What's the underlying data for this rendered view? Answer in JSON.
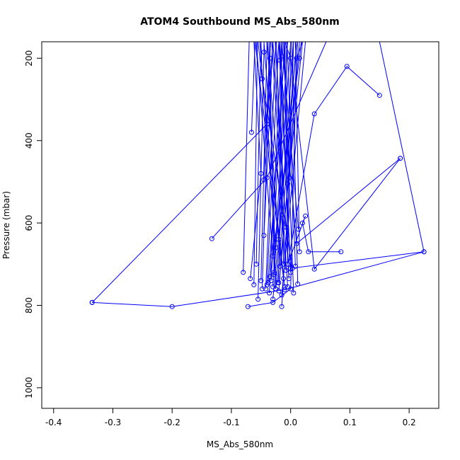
{
  "chart_data": {
    "type": "line",
    "title": "ATOM4 Southbound MS_Abs_580nm",
    "xlabel": "MS_Abs_580nm",
    "ylabel": "Pressure (mbar)",
    "xlim": [
      -0.42,
      0.25
    ],
    "ylim": [
      1050,
      160
    ],
    "y_reversed": true,
    "x_ticks": [
      -0.4,
      -0.3,
      -0.2,
      -0.1,
      0.0,
      0.1,
      0.2
    ],
    "x_tick_labels": [
      "-0.4",
      "-0.3",
      "-0.2",
      "-0.1",
      "0.0",
      "0.1",
      "0.2"
    ],
    "y_ticks": [
      200,
      400,
      600,
      800,
      1000
    ],
    "y_tick_labels": [
      "200",
      "400",
      "600",
      "800",
      "1000"
    ],
    "grid": false,
    "legend": "none",
    "series_color": "#0000ff",
    "marker": "open-circle",
    "series": [
      {
        "points": [
          [
            -0.335,
            793
          ],
          [
            -0.2,
            803
          ],
          [
            -0.01,
            762
          ],
          [
            0.225,
            670
          ],
          [
            0.15,
            160
          ]
        ]
      },
      {
        "points": [
          [
            -0.133,
            638
          ],
          [
            -0.04,
            490
          ],
          [
            0.06,
            160
          ]
        ]
      },
      {
        "points": [
          [
            -0.335,
            793
          ],
          [
            -0.04,
            360
          ],
          [
            -0.03,
            160
          ]
        ]
      },
      {
        "points": [
          [
            0.185,
            443
          ],
          [
            0.01,
            650
          ],
          [
            -0.02,
            160
          ]
        ]
      },
      {
        "points": [
          [
            0.15,
            290
          ],
          [
            0.095,
            220
          ],
          [
            0.04,
            335
          ],
          [
            -0.005,
            700
          ],
          [
            0.0,
            160
          ]
        ]
      },
      {
        "points": [
          [
            0.085,
            670
          ],
          [
            0.03,
            670
          ],
          [
            0.02,
            600
          ],
          [
            0.025,
            583
          ],
          [
            -0.005,
            700
          ],
          [
            -0.01,
            160
          ]
        ]
      },
      {
        "points": [
          [
            0.225,
            670
          ],
          [
            0.0,
            710
          ],
          [
            -0.02,
            160
          ]
        ]
      },
      {
        "points": [
          [
            0.185,
            443
          ],
          [
            0.04,
            712
          ],
          [
            0.0,
            200
          ],
          [
            -0.01,
            160
          ]
        ]
      },
      {
        "points": [
          [
            -0.072,
            803
          ],
          [
            -0.03,
            793
          ],
          [
            0.0,
            760
          ],
          [
            0.01,
            200
          ],
          [
            0.02,
            160
          ]
        ]
      },
      {
        "points": [
          [
            -0.08,
            720
          ],
          [
            -0.07,
            160
          ]
        ]
      },
      {
        "points": [
          [
            -0.068,
            735
          ],
          [
            -0.05,
            480
          ],
          [
            -0.062,
            160
          ]
        ]
      },
      {
        "points": [
          [
            -0.062,
            750
          ],
          [
            -0.056,
            160
          ]
        ]
      },
      {
        "points": [
          [
            -0.058,
            700
          ],
          [
            -0.05,
            160
          ]
        ]
      },
      {
        "points": [
          [
            -0.055,
            785
          ],
          [
            -0.045,
            185
          ],
          [
            -0.045,
            160
          ]
        ]
      },
      {
        "points": [
          [
            -0.05,
            740
          ],
          [
            -0.04,
            175
          ],
          [
            -0.04,
            160
          ]
        ]
      },
      {
        "points": [
          [
            -0.048,
            760
          ],
          [
            -0.035,
            160
          ]
        ]
      },
      {
        "points": [
          [
            -0.045,
            630
          ],
          [
            -0.03,
            160
          ]
        ]
      },
      {
        "points": [
          [
            -0.042,
            760
          ],
          [
            -0.025,
            160
          ]
        ]
      },
      {
        "points": [
          [
            -0.04,
            750
          ],
          [
            -0.02,
            160
          ]
        ]
      },
      {
        "points": [
          [
            -0.036,
            770
          ],
          [
            -0.015,
            160
          ]
        ]
      },
      {
        "points": [
          [
            -0.033,
            740
          ],
          [
            -0.01,
            160
          ]
        ]
      },
      {
        "points": [
          [
            -0.03,
            755
          ],
          [
            -0.005,
            160
          ]
        ]
      },
      {
        "points": [
          [
            -0.028,
            725
          ],
          [
            0.0,
            160
          ]
        ]
      },
      {
        "points": [
          [
            -0.025,
            760
          ],
          [
            0.005,
            160
          ]
        ]
      },
      {
        "points": [
          [
            -0.022,
            745
          ],
          [
            0.01,
            160
          ]
        ]
      },
      {
        "points": [
          [
            -0.02,
            765
          ],
          [
            0.015,
            160
          ]
        ]
      },
      {
        "points": [
          [
            -0.018,
            705
          ],
          [
            0.02,
            160
          ]
        ]
      },
      {
        "points": [
          [
            -0.015,
            775
          ],
          [
            0.025,
            160
          ]
        ]
      },
      {
        "points": [
          [
            -0.012,
            735
          ],
          [
            -0.06,
            160
          ]
        ]
      },
      {
        "points": [
          [
            -0.01,
            755
          ],
          [
            -0.055,
            160
          ]
        ]
      },
      {
        "points": [
          [
            -0.008,
            715
          ],
          [
            -0.04,
            160
          ]
        ]
      },
      {
        "points": [
          [
            -0.005,
            755
          ],
          [
            -0.032,
            160
          ]
        ]
      },
      {
        "points": [
          [
            -0.003,
            735
          ],
          [
            -0.026,
            160
          ]
        ]
      },
      {
        "points": [
          [
            0.0,
            720
          ],
          [
            -0.018,
            160
          ]
        ]
      },
      {
        "points": [
          [
            0.005,
            770
          ],
          [
            -0.012,
            160
          ]
        ]
      },
      {
        "points": [
          [
            0.008,
            705
          ],
          [
            -0.006,
            160
          ]
        ]
      },
      {
        "points": [
          [
            0.012,
            748
          ],
          [
            0.002,
            160
          ]
        ]
      },
      {
        "points": [
          [
            0.015,
            670
          ],
          [
            0.008,
            160
          ]
        ]
      },
      {
        "points": [
          [
            -0.015,
            803
          ],
          [
            0.012,
            160
          ]
        ]
      },
      {
        "points": [
          [
            0.003,
            710
          ],
          [
            -0.048,
            250
          ],
          [
            -0.05,
            160
          ]
        ]
      },
      {
        "points": [
          [
            -0.045,
            495
          ],
          [
            -0.035,
            160
          ]
        ]
      },
      {
        "points": [
          [
            -0.066,
            380
          ],
          [
            -0.06,
            160
          ]
        ]
      },
      {
        "points": [
          [
            -0.035,
            730
          ],
          [
            0.015,
            200
          ],
          [
            0.018,
            160
          ]
        ]
      },
      {
        "points": [
          [
            -0.028,
            720
          ],
          [
            -0.035,
            200
          ],
          [
            -0.034,
            160
          ]
        ]
      },
      {
        "points": [
          [
            -0.025,
            760
          ],
          [
            -0.038,
            175
          ],
          [
            -0.038,
            160
          ]
        ]
      },
      {
        "points": [
          [
            -0.02,
            745
          ],
          [
            -0.015,
            195
          ],
          [
            -0.014,
            160
          ]
        ]
      },
      {
        "points": [
          [
            -0.012,
            700
          ],
          [
            -0.018,
            205
          ],
          [
            -0.018,
            160
          ]
        ]
      },
      {
        "points": [
          [
            -0.03,
            785
          ],
          [
            0.01,
            165
          ]
        ]
      },
      {
        "points": [
          [
            -0.038,
            745
          ],
          [
            -0.01,
            175
          ]
        ]
      },
      {
        "points": [
          [
            0.013,
            615
          ],
          [
            -0.015,
            160
          ]
        ]
      },
      {
        "points": [
          [
            -0.002,
            490
          ],
          [
            0.005,
            160
          ]
        ]
      },
      {
        "points": [
          [
            -0.005,
            505
          ],
          [
            -0.008,
            160
          ]
        ]
      },
      {
        "points": [
          [
            -0.015,
            580
          ],
          [
            -0.024,
            160
          ]
        ]
      },
      {
        "points": [
          [
            -0.008,
            610
          ],
          [
            -0.03,
            160
          ]
        ]
      },
      {
        "points": [
          [
            -0.02,
            640
          ],
          [
            -0.045,
            160
          ]
        ]
      },
      {
        "points": [
          [
            -0.025,
            660
          ],
          [
            -0.052,
            160
          ]
        ]
      },
      {
        "points": [
          [
            -0.03,
            680
          ],
          [
            -0.058,
            160
          ]
        ]
      }
    ]
  }
}
